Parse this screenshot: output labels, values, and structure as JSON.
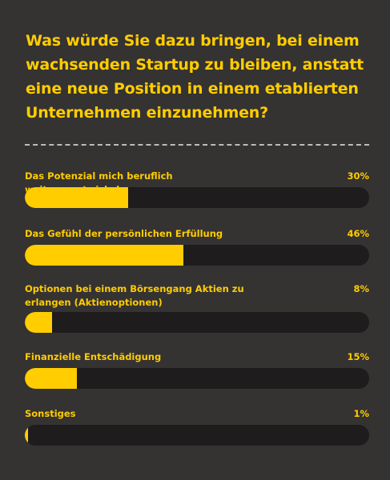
{
  "title": "Was würde Sie dazu bringen, bei einem wachsenden Startup zu bleiben, anstatt eine neue Position in einem etablierten Unternehmen einzunehmen?",
  "colors": {
    "background": "#353232",
    "accent": "#ffcd00",
    "track": "#1e1c1c",
    "divider": "#bdbdbd"
  },
  "chart_data": {
    "type": "bar",
    "orientation": "horizontal",
    "title": "Was würde Sie dazu bringen, bei einem wachsenden Startup zu bleiben, anstatt eine neue Position in einem etablierten Unternehmen einzunehmen?",
    "categories": [
      "Das Potenzial mich beruflich weiterzuentwickeln",
      "Das Gefühl der persönlichen Erfüllung",
      "Optionen bei einem Börsengang Aktien zu erlangen (Aktienoptionen)",
      "Finanzielle Entschädigung",
      "Sonstiges"
    ],
    "values": [
      30,
      46,
      8,
      15,
      1
    ],
    "value_labels": [
      "30%",
      "46%",
      "8%",
      "15%",
      "1%"
    ],
    "xlim": [
      0,
      100
    ],
    "unit": "%"
  }
}
